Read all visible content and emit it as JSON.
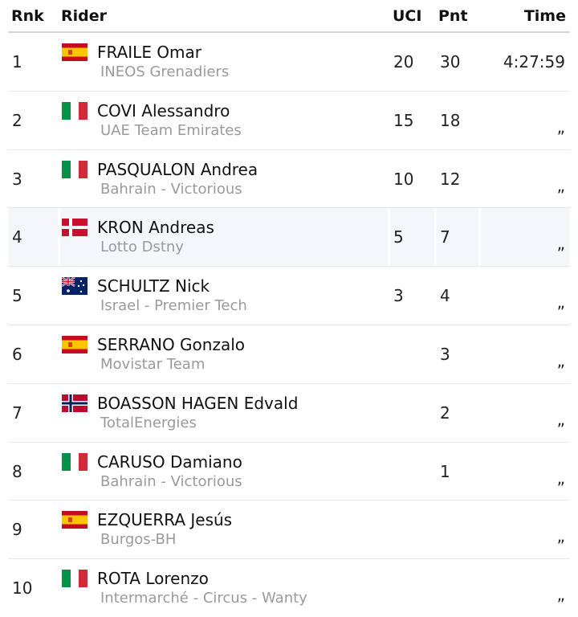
{
  "table": {
    "header": [
      "Rnk",
      "Rider",
      "UCI",
      "Pnt",
      "Time"
    ],
    "rows": [
      {
        "rank": 1,
        "rider": "FRAILE Omar",
        "team": "INEOS Grenadiers",
        "uci": 20,
        "pnt": 30,
        "time": "4:27:59"
      },
      {
        "rank": 2,
        "rider": "COVI Alessandro",
        "team": "UAE Team Emirates",
        "uci": 15,
        "pnt": 18,
        "time": "„"
      },
      {
        "rank": 3,
        "rider": "PASQUALON Andrea",
        "team": "Bahrain - Victorious",
        "uci": 10,
        "pnt": 12,
        "time": "„"
      },
      {
        "rank": 4,
        "rider": "KRON Andreas",
        "team": "Lotto Dstny",
        "uci": 5,
        "pnt": 7,
        "time": "„"
      },
      {
        "rank": 5,
        "rider": "SCHULTZ Nick",
        "team": "Israel - Premier Tech",
        "uci": 3,
        "pnt": 4,
        "time": "„"
      },
      {
        "rank": 6,
        "rider": "SERRANO Gonzalo",
        "team": "Movistar Team",
        "pnt": 3,
        "time": "„"
      },
      {
        "rank": 7,
        "rider": "BOASSON HAGEN Edvald",
        "team": "TotalEnergies",
        "pnt": 2,
        "time": "„"
      },
      {
        "rank": 8,
        "rider": "CARUSO Damiano",
        "team": "Bahrain - Victorious",
        "pnt": 1,
        "time": "„"
      },
      {
        "rank": 9,
        "rider": "EZQUERRA Jesús",
        "team": "Burgos-BH",
        "time": "„"
      },
      {
        "rank": 10,
        "rider": "ROTA Lorenzo",
        "team": "Intermarché - Circus - Wanty",
        "time": "„"
      }
    ]
  }
}
